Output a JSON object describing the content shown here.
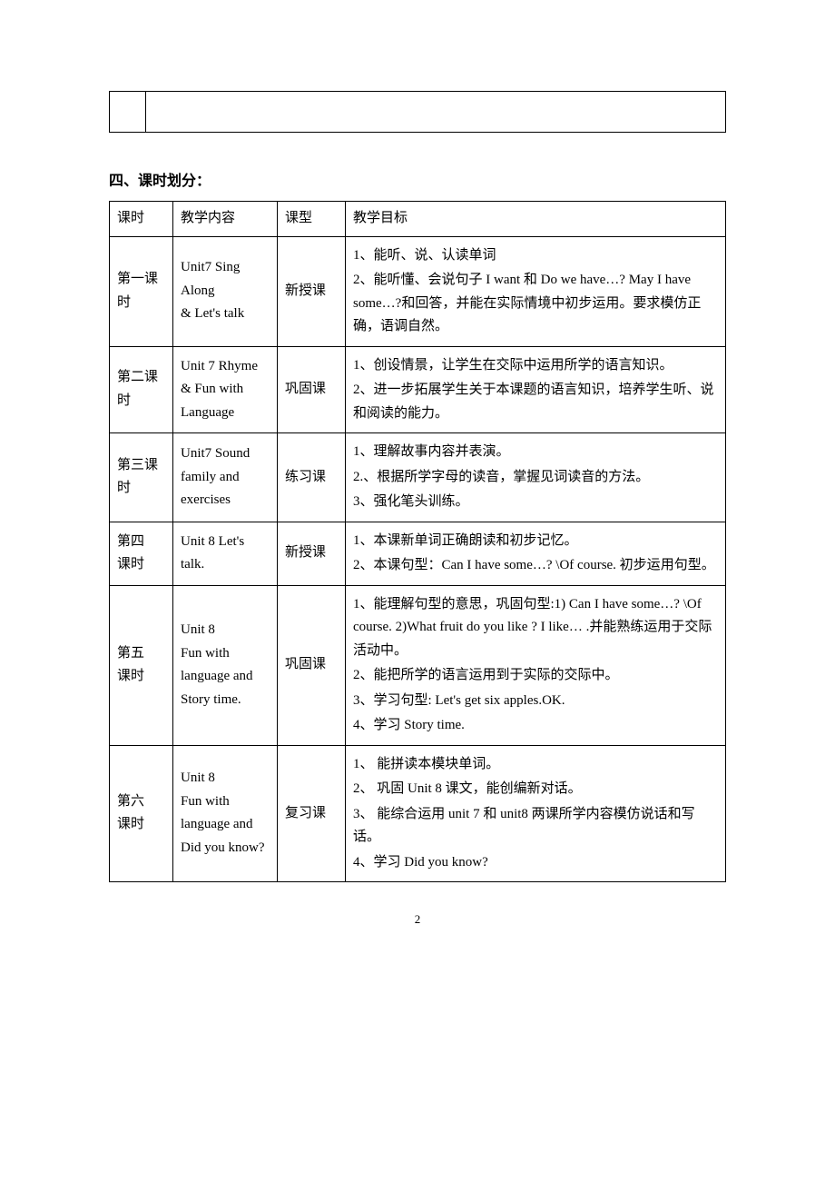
{
  "section_title": "四、课时划分：",
  "headers": {
    "period": "课时",
    "content": "教学内容",
    "type": "课型",
    "goals": "教学目标"
  },
  "rows": [
    {
      "period": "第一课时",
      "content": "Unit7 Sing Along\n& Let's talk",
      "type": "新授课",
      "goals": [
        "1、能听、说、认读单词",
        "2、能听懂、会说句子 I want 和 Do we have…? May I have some…?和回答，并能在实际情境中初步运用。要求模仿正确，语调自然。"
      ]
    },
    {
      "period": "第二课时",
      "content": "Unit 7 Rhyme & Fun with Language",
      "type": "巩固课",
      "goals": [
        "1、创设情景，让学生在交际中运用所学的语言知识。",
        "2、进一步拓展学生关于本课题的语言知识，培养学生听、说和阅读的能力。"
      ]
    },
    {
      "period": "第三课时",
      "content": "Unit7 Sound family and\nexercises",
      "type": "练习课",
      "goals": [
        "1、理解故事内容并表演。",
        "2.、根据所学字母的读音，掌握见词读音的方法。",
        "3、强化笔头训练。"
      ]
    },
    {
      "period": "第四\n课时",
      "content": "Unit 8 Let's talk.",
      "type": "新授课",
      "goals": [
        "1、本课新单词正确朗读和初步记忆。",
        "2、本课句型：Can I have some…? \\Of course.  初步运用句型。"
      ]
    },
    {
      "period": "第五\n课时",
      "content": "Unit 8\nFun with language and Story time.",
      "type": "巩固课",
      "goals": [
        "1、能理解句型的意思，巩固句型:1) Can I have some…? \\Of course. 2)What fruit do you like ? I like… .并能熟练运用于交际活动中。",
        "2、能把所学的语言运用到于实际的交际中。",
        "3、学习句型: Let's get six apples.OK.",
        "4、学习 Story time."
      ]
    },
    {
      "period": "第六\n课时",
      "content": "Unit 8\nFun with language and Did you know?",
      "type": "复习课",
      "goals": [
        "1、 能拼读本模块单词。",
        "2、 巩固 Unit 8 课文，能创编新对话。",
        "3、 能综合运用 unit 7 和 unit8 两课所学内容模仿说话和写话。",
        "4、学习 Did you know?"
      ]
    }
  ],
  "page_number": "2"
}
